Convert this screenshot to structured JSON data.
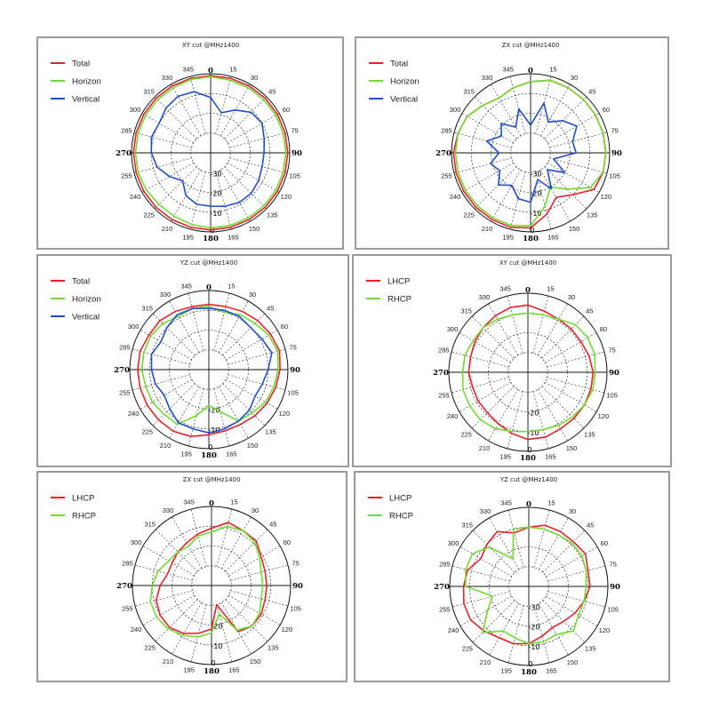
{
  "colors": {
    "red": "#e8202a",
    "green": "#6fdc2e",
    "blue": "#1f4ecb"
  },
  "chart_data": [
    {
      "type": "polar",
      "title": "XY cut @MHz1400",
      "angular_ticks": [
        "0",
        "15",
        "30",
        "45",
        "60",
        "75",
        "90",
        "105",
        "120",
        "135",
        "150",
        "165",
        "180",
        "195",
        "210",
        "225",
        "240",
        "255",
        "270",
        "285",
        "300",
        "315",
        "330",
        "345"
      ],
      "radial_tick_labels": [
        "-30",
        "-20",
        "-10",
        "0"
      ],
      "rlim": [
        -40,
        0
      ],
      "legend_position": "top-left",
      "series": [
        {
          "name": "Total",
          "color": "red",
          "theta": [
            0,
            15,
            30,
            45,
            60,
            75,
            90,
            105,
            120,
            135,
            150,
            165,
            180,
            195,
            210,
            225,
            240,
            255,
            270,
            285,
            300,
            315,
            330,
            345
          ],
          "r": [
            -1,
            -1,
            -1,
            -1,
            -1,
            -1,
            -1,
            -1,
            -1,
            -1,
            -1,
            -1,
            -1,
            -1,
            -1,
            -1,
            -1,
            -1,
            -1,
            -1,
            -1,
            -1,
            -1,
            -1
          ]
        },
        {
          "name": "Horizon",
          "color": "green",
          "theta": [
            0,
            15,
            30,
            45,
            60,
            75,
            90,
            105,
            120,
            135,
            150,
            165,
            180,
            195,
            210,
            225,
            240,
            255,
            270,
            285,
            300,
            315,
            330,
            345
          ],
          "r": [
            -1.5,
            -2,
            -2,
            -2,
            -2,
            -2,
            -2,
            -2,
            -2,
            -2,
            -2,
            -2,
            -2,
            -2.5,
            -3,
            -3,
            -2.5,
            -2,
            -2,
            -2,
            -2,
            -2,
            -2,
            -1.5
          ]
        },
        {
          "name": "Vertical",
          "color": "blue",
          "theta": [
            0,
            15,
            30,
            45,
            60,
            75,
            90,
            105,
            120,
            135,
            150,
            165,
            180,
            195,
            210,
            225,
            240,
            255,
            270,
            285,
            300,
            315,
            330,
            345
          ],
          "r": [
            -12,
            -19,
            -15,
            -11,
            -10,
            -12,
            -13,
            -13,
            -12,
            -11,
            -11,
            -12,
            -13,
            -13,
            -15,
            -20,
            -16,
            -12,
            -10,
            -9,
            -10,
            -8,
            -7,
            -8
          ]
        }
      ]
    },
    {
      "type": "polar",
      "title": "ZX cut @MHz1400",
      "angular_ticks": [
        "0",
        "15",
        "30",
        "45",
        "60",
        "75",
        "90",
        "105",
        "120",
        "135",
        "150",
        "165",
        "180",
        "195",
        "210",
        "225",
        "240",
        "255",
        "270",
        "285",
        "300",
        "315",
        "330",
        "345"
      ],
      "radial_tick_labels": [
        "-30",
        "-20",
        "-10",
        "0"
      ],
      "rlim": [
        -40,
        0
      ],
      "legend_position": "top-left",
      "series": [
        {
          "name": "Total",
          "color": "red",
          "theta": [
            0,
            15,
            30,
            45,
            60,
            75,
            90,
            105,
            120,
            135,
            150,
            165,
            180,
            195,
            210,
            225,
            240,
            255,
            270,
            285,
            300,
            315,
            330,
            345
          ],
          "r": [
            -4,
            -2,
            -2,
            -2,
            -2,
            -2,
            -2,
            -2,
            -3,
            -10,
            -14,
            -8,
            -2,
            -1,
            -1,
            -1,
            -1,
            -1,
            -1,
            -2,
            -3,
            -6,
            -8,
            -6
          ]
        },
        {
          "name": "Horizon",
          "color": "green",
          "theta": [
            0,
            15,
            30,
            45,
            60,
            75,
            90,
            105,
            120,
            135,
            150,
            165,
            180,
            195,
            210,
            225,
            240,
            255,
            270,
            285,
            300,
            315,
            330,
            345
          ],
          "r": [
            -4,
            -2,
            -2,
            -2,
            -2,
            -2,
            -2,
            -2,
            -5,
            -14,
            -20,
            -12,
            -3,
            -2,
            -2,
            -2,
            -2,
            -2,
            -2,
            -2,
            -3,
            -6,
            -8,
            -6
          ]
        },
        {
          "name": "Vertical",
          "color": "blue",
          "theta": [
            0,
            15,
            30,
            45,
            60,
            75,
            90,
            105,
            120,
            135,
            150,
            165,
            180,
            195,
            210,
            225,
            240,
            255,
            270,
            285,
            300,
            315,
            330,
            345
          ],
          "r": [
            -26,
            -14,
            -22,
            -17,
            -13,
            -18,
            -17,
            -28,
            -20,
            -28,
            -19,
            -26,
            -15,
            -16,
            -21,
            -17,
            -22,
            -19,
            -24,
            -17,
            -23,
            -19,
            -25,
            -17
          ]
        }
      ]
    },
    {
      "type": "polar",
      "title": "YZ cut @MHz1400",
      "angular_ticks": [
        "0",
        "15",
        "30",
        "45",
        "60",
        "75",
        "90",
        "105",
        "120",
        "135",
        "150",
        "165",
        "180",
        "195",
        "210",
        "225",
        "240",
        "255",
        "270",
        "285",
        "300",
        "315",
        "330",
        "345"
      ],
      "radial_tick_labels": [
        "-20",
        "-10",
        "0"
      ],
      "rlim": [
        -40,
        0
      ],
      "legend_position": "top-left",
      "series": [
        {
          "name": "Total",
          "color": "red",
          "theta": [
            0,
            15,
            30,
            45,
            60,
            75,
            90,
            105,
            120,
            135,
            150,
            165,
            180,
            195,
            210,
            225,
            240,
            255,
            270,
            285,
            300,
            315,
            330,
            345
          ],
          "r": [
            -7,
            -7,
            -6,
            -5,
            -4,
            -3,
            -4,
            -5,
            -6,
            -7,
            -8,
            -8,
            -7,
            -5,
            -4,
            -4,
            -4,
            -4,
            -4,
            -4,
            -5,
            -5,
            -6,
            -7
          ]
        },
        {
          "name": "Horizon",
          "color": "green",
          "theta": [
            0,
            15,
            30,
            45,
            60,
            75,
            90,
            105,
            120,
            135,
            150,
            165,
            180,
            195,
            210,
            225,
            240,
            255,
            270,
            285,
            300,
            315,
            330,
            345
          ],
          "r": [
            -8,
            -10,
            -8,
            -7,
            -5,
            -4,
            -5,
            -6,
            -7,
            -9,
            -10,
            -18,
            -22,
            -16,
            -8,
            -8,
            -7,
            -7,
            -6,
            -6,
            -6,
            -7,
            -9,
            -8
          ]
        },
        {
          "name": "Vertical",
          "color": "blue",
          "theta": [
            0,
            15,
            30,
            45,
            60,
            75,
            90,
            105,
            120,
            135,
            150,
            165,
            180,
            195,
            210,
            225,
            240,
            255,
            270,
            285,
            300,
            315,
            330,
            345
          ],
          "r": [
            -9,
            -9,
            -9,
            -10,
            -9,
            -7,
            -10,
            -12,
            -13,
            -11,
            -10,
            -9,
            -8,
            -9,
            -9,
            -12,
            -14,
            -12,
            -11,
            -10,
            -12,
            -10,
            -8,
            -8
          ]
        }
      ]
    },
    {
      "type": "polar",
      "title": "XY cut @MHz1400",
      "angular_ticks": [
        "0",
        "15",
        "30",
        "45",
        "60",
        "75",
        "90",
        "105",
        "120",
        "135",
        "150",
        "165",
        "180",
        "195",
        "210",
        "225",
        "240",
        "255",
        "270",
        "285",
        "300",
        "315",
        "330",
        "345"
      ],
      "radial_tick_labels": [
        "-20",
        "-10",
        "0"
      ],
      "rlim": [
        -40,
        0
      ],
      "legend_position": "top-left",
      "series": [
        {
          "name": "LHCP",
          "color": "red",
          "theta": [
            0,
            15,
            30,
            45,
            60,
            75,
            90,
            105,
            120,
            135,
            150,
            165,
            180,
            195,
            210,
            225,
            240,
            255,
            270,
            285,
            300,
            315,
            330,
            345
          ],
          "r": [
            -6,
            -8,
            -9,
            -9,
            -9,
            -8,
            -7,
            -7,
            -7,
            -7,
            -7,
            -6,
            -6,
            -8,
            -10,
            -11,
            -11,
            -11,
            -10,
            -10,
            -9,
            -8,
            -7,
            -6
          ]
        },
        {
          "name": "RHCP",
          "color": "green",
          "theta": [
            0,
            15,
            30,
            45,
            60,
            75,
            90,
            105,
            120,
            135,
            150,
            165,
            180,
            195,
            210,
            225,
            240,
            255,
            270,
            285,
            300,
            315,
            330,
            345
          ],
          "r": [
            -10,
            -10,
            -9,
            -6,
            -5,
            -5,
            -6,
            -6,
            -7,
            -8,
            -9,
            -10,
            -10,
            -9,
            -7,
            -6,
            -6,
            -6,
            -7,
            -7,
            -8,
            -8,
            -9,
            -10
          ]
        }
      ]
    },
    {
      "type": "polar",
      "title": "ZX cut @MHz1400",
      "angular_ticks": [
        "0",
        "15",
        "30",
        "45",
        "60",
        "75",
        "90",
        "105",
        "120",
        "135",
        "150",
        "165",
        "180",
        "195",
        "210",
        "225",
        "240",
        "255",
        "270",
        "285",
        "300",
        "315",
        "330",
        "345"
      ],
      "radial_tick_labels": [
        "-20",
        "-10",
        "0"
      ],
      "rlim": [
        -40,
        0
      ],
      "legend_position": "top-left",
      "series": [
        {
          "name": "LHCP",
          "color": "red",
          "theta": [
            0,
            15,
            30,
            45,
            60,
            75,
            90,
            105,
            120,
            135,
            150,
            165,
            180,
            195,
            210,
            225,
            240,
            255,
            270,
            285,
            300,
            315,
            330,
            345
          ],
          "r": [
            -11,
            -7,
            -8,
            -8,
            -11,
            -12,
            -12,
            -12,
            -11,
            -11,
            -13,
            -30,
            -18,
            -15,
            -12,
            -10,
            -10,
            -11,
            -14,
            -17,
            -17,
            -16,
            -15,
            -13
          ]
        },
        {
          "name": "RHCP",
          "color": "green",
          "theta": [
            0,
            15,
            30,
            45,
            60,
            75,
            90,
            105,
            120,
            135,
            150,
            165,
            180,
            195,
            210,
            225,
            240,
            255,
            270,
            285,
            300,
            315,
            330,
            345
          ],
          "r": [
            -13,
            -9,
            -8,
            -9,
            -12,
            -14,
            -14,
            -14,
            -12,
            -11,
            -14,
            -25,
            -16,
            -13,
            -11,
            -9,
            -8,
            -8,
            -10,
            -12,
            -15,
            -16,
            -17,
            -14
          ]
        }
      ]
    },
    {
      "type": "polar",
      "title": "YZ cut @MHz1400",
      "angular_ticks": [
        "0",
        "15",
        "30",
        "45",
        "60",
        "75",
        "90",
        "105",
        "120",
        "135",
        "150",
        "165",
        "180",
        "195",
        "210",
        "225",
        "240",
        "255",
        "270",
        "285",
        "300",
        "315",
        "330",
        "345"
      ],
      "radial_tick_labels": [
        "-30",
        "-20",
        "-10",
        "0"
      ],
      "rlim": [
        -40,
        0
      ],
      "legend_position": "top-left",
      "series": [
        {
          "name": "LHCP",
          "color": "red",
          "theta": [
            0,
            15,
            30,
            45,
            60,
            75,
            90,
            105,
            120,
            135,
            150,
            165,
            180,
            195,
            210,
            225,
            240,
            255,
            270,
            285,
            300,
            315,
            330,
            345
          ],
          "r": [
            -10,
            -8,
            -8,
            -8,
            -7,
            -9,
            -9,
            -11,
            -13,
            -15,
            -16,
            -14,
            -11,
            -10,
            -10,
            -8,
            -6,
            -6,
            -7,
            -8,
            -12,
            -10,
            -8,
            -12
          ]
        },
        {
          "name": "RHCP",
          "color": "green",
          "theta": [
            0,
            15,
            30,
            45,
            60,
            75,
            90,
            105,
            120,
            135,
            150,
            165,
            180,
            195,
            210,
            225,
            240,
            255,
            270,
            285,
            300,
            315,
            330,
            345
          ],
          "r": [
            -10,
            -10,
            -10,
            -9,
            -9,
            -10,
            -11,
            -11,
            -11,
            -8,
            -12,
            -11,
            -11,
            -13,
            -14,
            -7,
            -16,
            -21,
            -8,
            -7,
            -7,
            -12,
            -24,
            -10
          ]
        }
      ]
    }
  ]
}
